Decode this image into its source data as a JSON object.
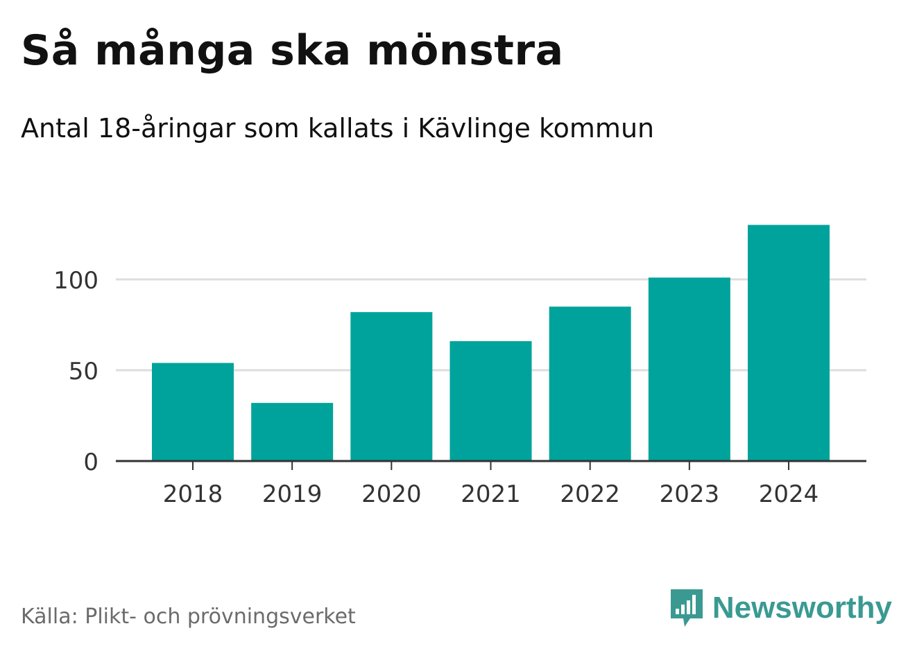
{
  "title": "Så många ska mönstra",
  "subtitle": "Antal 18-åringar som kallats i Kävlinge kommun",
  "source": "Källa: Plikt- och prövningsverket",
  "brand": {
    "name": "Newsworthy",
    "icon": "newsworthy-logo-icon",
    "color": "#3a9a92"
  },
  "chart_data": {
    "type": "bar",
    "categories": [
      "2018",
      "2019",
      "2020",
      "2021",
      "2022",
      "2023",
      "2024"
    ],
    "values": [
      54,
      32,
      82,
      66,
      85,
      101,
      130
    ],
    "yticks": [
      "0",
      "50",
      "100"
    ],
    "ylim": [
      0,
      130
    ],
    "grid": true,
    "bar_color": "#00a39b"
  }
}
